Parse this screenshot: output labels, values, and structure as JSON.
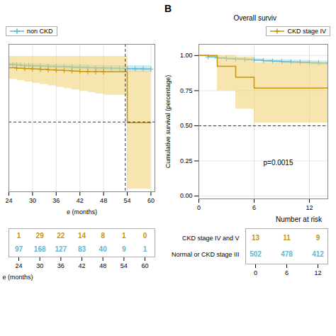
{
  "chart_data": [
    {
      "type": "step",
      "xlabel": "e (months)",
      "xlim": [
        24,
        61
      ],
      "xticks": [
        24,
        30,
        36,
        42,
        48,
        54,
        60
      ],
      "ylim": [
        -0.02,
        1.08
      ],
      "tick_labels": "x",
      "grid": true,
      "legend": "upper left",
      "hlines": [
        0.5
      ],
      "vlines": [
        53.5
      ],
      "series": [
        {
          "name": "non CKD",
          "color": "#5BB8D4",
          "ci_color": "#A8D8EA",
          "marker": "plus",
          "x": [
            24,
            25,
            26,
            27,
            28,
            29,
            30,
            32,
            34,
            36,
            38,
            40,
            42,
            44,
            46,
            48,
            50,
            52,
            54,
            56,
            58,
            60
          ],
          "values": [
            0.93,
            0.928,
            0.926,
            0.924,
            0.922,
            0.921,
            0.92,
            0.918,
            0.916,
            0.914,
            0.912,
            0.91,
            0.908,
            0.906,
            0.904,
            0.903,
            0.901,
            0.9,
            0.898,
            0.897,
            0.896,
            0.895
          ],
          "ci_low": [
            0.916,
            0.914,
            0.912,
            0.91,
            0.908,
            0.906,
            0.905,
            0.902,
            0.9,
            0.897,
            0.895,
            0.892,
            0.89,
            0.887,
            0.884,
            0.882,
            0.88,
            0.878,
            0.875,
            0.873,
            0.871,
            0.868
          ],
          "ci_high": [
            0.944,
            0.942,
            0.94,
            0.938,
            0.936,
            0.936,
            0.935,
            0.934,
            0.932,
            0.931,
            0.929,
            0.928,
            0.926,
            0.925,
            0.924,
            0.924,
            0.922,
            0.922,
            0.921,
            0.921,
            0.921,
            0.922
          ]
        },
        {
          "color": "#C8940A",
          "ci_color": "#F0D070",
          "marker": "plus",
          "censor_x": [
            24,
            26,
            28,
            30,
            32,
            34,
            36,
            38,
            40,
            42,
            44,
            46,
            48
          ],
          "x": [
            24,
            26,
            28,
            30,
            32,
            34,
            36,
            38,
            40,
            42,
            44,
            46,
            48,
            53.5,
            54,
            60
          ],
          "values": [
            0.905,
            0.902,
            0.899,
            0.896,
            0.893,
            0.89,
            0.887,
            0.884,
            0.881,
            0.878,
            0.877,
            0.876,
            0.875,
            0.875,
            0.495,
            0.495
          ],
          "ci_low": [
            0.82,
            0.81,
            0.8,
            0.79,
            0.78,
            0.77,
            0.76,
            0.75,
            0.74,
            0.73,
            0.72,
            0.71,
            0.7,
            0.7,
            0.0,
            0.0
          ],
          "ci_high": [
            0.99,
            0.99,
            0.99,
            0.99,
            0.99,
            0.99,
            0.99,
            0.99,
            0.99,
            0.99,
            0.99,
            0.99,
            0.99,
            0.99,
            0.88,
            0.88
          ]
        }
      ]
    },
    {
      "type": "step",
      "panel_label": "B",
      "title": "Overall surviv",
      "ylabel": "Cumulative survival (percentage)",
      "xlim": [
        0,
        14
      ],
      "xticks": [
        0,
        6,
        12
      ],
      "ylim": [
        -0.02,
        1.08
      ],
      "yticks": [
        {
          "value": 0,
          "label": "0.00"
        },
        {
          "value": 0.25,
          "label": "0.25"
        },
        {
          "value": 0.5,
          "label": "0.50"
        },
        {
          "value": 0.75,
          "label": "0.75"
        },
        {
          "value": 1,
          "label": "1.00"
        }
      ],
      "grid": true,
      "legend": "upper right",
      "annotation": "p=0.0015",
      "hlines": [
        0.5
      ],
      "series": [
        {
          "color": "#5BB8D4",
          "ci_color": "#A8D8EA",
          "marker": "plus",
          "x": [
            0,
            1,
            2,
            3,
            4,
            5,
            6,
            7,
            8,
            9,
            10,
            11,
            12,
            13,
            14
          ],
          "values": [
            1.0,
            0.99,
            0.982,
            0.978,
            0.975,
            0.972,
            0.968,
            0.963,
            0.96,
            0.957,
            0.954,
            0.952,
            0.949,
            0.947,
            0.945
          ],
          "ci_low": [
            1.0,
            0.985,
            0.975,
            0.97,
            0.967,
            0.963,
            0.958,
            0.952,
            0.948,
            0.944,
            0.941,
            0.938,
            0.934,
            0.931,
            0.929
          ],
          "ci_high": [
            1.0,
            0.995,
            0.989,
            0.986,
            0.983,
            0.981,
            0.978,
            0.974,
            0.972,
            0.97,
            0.968,
            0.966,
            0.964,
            0.963,
            0.961
          ]
        },
        {
          "name": "CKD stage IV",
          "color": "#C8940A",
          "ci_color": "#F0D070",
          "x": [
            0,
            2,
            4,
            6,
            8,
            10,
            12,
            14
          ],
          "values": [
            1.0,
            0.923,
            0.846,
            0.769,
            0.769,
            0.769,
            0.769,
            0.769
          ],
          "ci_low": [
            1.0,
            0.75,
            0.62,
            0.52,
            0.52,
            0.52,
            0.52,
            0.52
          ],
          "ci_high": [
            1.0,
            1.0,
            0.99,
            0.95,
            0.95,
            0.95,
            0.95,
            0.95
          ]
        }
      ]
    },
    {
      "type": "table",
      "xlabel": "e (months)",
      "xlim": [
        24,
        60
      ],
      "xticks": [
        24,
        30,
        36,
        42,
        48,
        54,
        60
      ],
      "x": [
        24,
        30,
        36,
        42,
        48,
        54,
        60
      ],
      "rows": [
        {
          "color": "#C8940A",
          "values": [
            1,
            29,
            22,
            14,
            8,
            1,
            0
          ]
        },
        {
          "color": "#5BB8D4",
          "values": [
            97,
            168,
            127,
            83,
            40,
            9,
            1
          ]
        }
      ]
    },
    {
      "type": "table",
      "title": "Number at risk",
      "xlim": [
        0,
        12
      ],
      "xticks": [
        0,
        6,
        12
      ],
      "x": [
        0,
        6,
        12
      ],
      "rows": [
        {
          "name": "CKD stage IV and V",
          "color": "#C8940A",
          "values": [
            13,
            11,
            9
          ]
        },
        {
          "name": "Normal or CKD stage III",
          "color": "#5BB8D4",
          "values": [
            502,
            478,
            412
          ]
        }
      ]
    }
  ]
}
